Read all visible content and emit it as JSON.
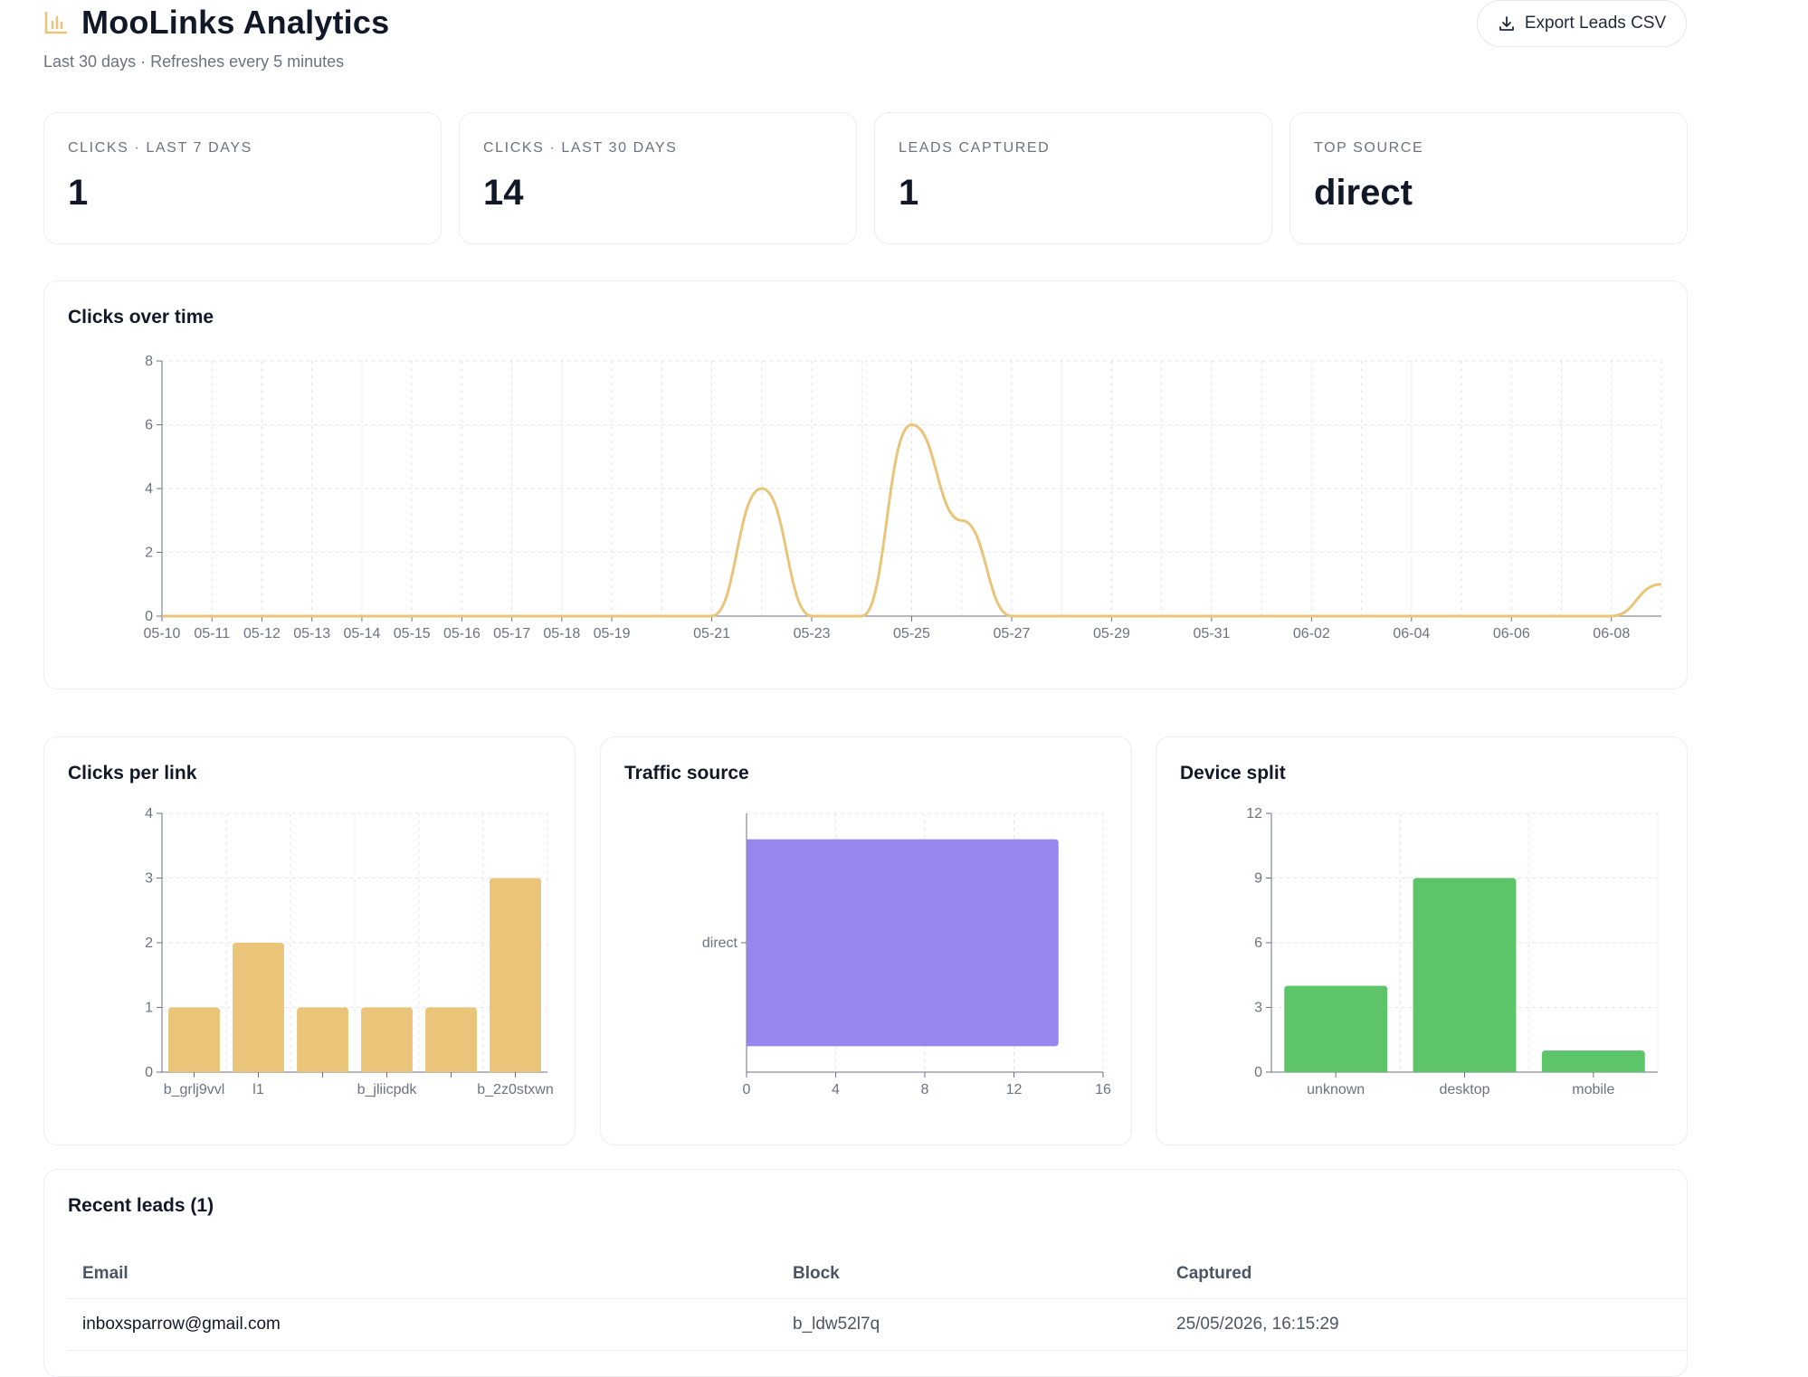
{
  "header": {
    "title": "MooLinks Analytics",
    "subtitle": "Last 30 days · Refreshes every 5 minutes",
    "export_label": "Export Leads CSV"
  },
  "stats": [
    {
      "label": "CLICKS · LAST 7 DAYS",
      "value": "1"
    },
    {
      "label": "CLICKS · LAST 30 DAYS",
      "value": "14"
    },
    {
      "label": "LEADS CAPTURED",
      "value": "1"
    },
    {
      "label": "TOP SOURCE",
      "value": "direct"
    }
  ],
  "colors": {
    "accent": "#e9c479",
    "traffic": "#9786ed",
    "device": "#5ec46a",
    "axis": "#6b7280",
    "grid": "#e5e7eb"
  },
  "charts": {
    "clicks_over_time": {
      "title": "Clicks over time",
      "chart_data": {
        "type": "line",
        "x": [
          "05-10",
          "05-11",
          "05-12",
          "05-13",
          "05-14",
          "05-15",
          "05-16",
          "05-17",
          "05-18",
          "05-19",
          "05-20",
          "05-21",
          "05-22",
          "05-23",
          "05-24",
          "05-25",
          "05-26",
          "05-27",
          "05-28",
          "05-29",
          "05-30",
          "05-31",
          "06-01",
          "06-02",
          "06-03",
          "06-04",
          "06-05",
          "06-06",
          "06-07",
          "06-08",
          "06-09"
        ],
        "y": [
          0,
          0,
          0,
          0,
          0,
          0,
          0,
          0,
          0,
          0,
          0,
          0,
          4,
          0,
          0,
          6,
          3,
          0,
          0,
          0,
          0,
          0,
          0,
          0,
          0,
          0,
          0,
          0,
          0,
          0,
          1
        ],
        "x_tick_labels": [
          "05-10",
          "05-11",
          "05-12",
          "05-13",
          "05-14",
          "05-15",
          "05-16",
          "05-17",
          "05-18",
          "05-19",
          "05-21",
          "05-23",
          "05-25",
          "05-27",
          "05-29",
          "05-31",
          "06-02",
          "06-04",
          "06-06",
          "06-08"
        ],
        "ylim": [
          0,
          8
        ],
        "y_ticks": [
          0,
          2,
          4,
          6,
          8
        ],
        "grid": true
      }
    },
    "clicks_per_link": {
      "title": "Clicks per link",
      "chart_data": {
        "type": "bar",
        "categories": [
          "b_grlj9vvl",
          "l1",
          "",
          "b_jliicpdk",
          "",
          "b_2z0stxwn"
        ],
        "values": [
          1,
          2,
          1,
          1,
          1,
          3
        ],
        "ylim": [
          0,
          4
        ],
        "y_ticks": [
          0,
          1,
          2,
          3,
          4
        ],
        "grid": true
      }
    },
    "traffic_source": {
      "title": "Traffic source",
      "chart_data": {
        "type": "bar",
        "orientation": "horizontal",
        "categories": [
          "direct"
        ],
        "values": [
          14
        ],
        "xlim": [
          0,
          16
        ],
        "x_ticks": [
          0,
          4,
          8,
          12,
          16
        ],
        "grid": true
      }
    },
    "device_split": {
      "title": "Device split",
      "chart_data": {
        "type": "bar",
        "categories": [
          "unknown",
          "desktop",
          "mobile"
        ],
        "values": [
          4,
          9,
          1
        ],
        "ylim": [
          0,
          12
        ],
        "y_ticks": [
          0,
          3,
          6,
          9,
          12
        ],
        "grid": true
      }
    }
  },
  "leads": {
    "title": "Recent leads (1)",
    "columns": [
      "Email",
      "Block",
      "Captured"
    ],
    "rows": [
      {
        "email": "inboxsparrow@gmail.com",
        "block": "b_ldw52l7q",
        "captured": "25/05/2026, 16:15:29"
      }
    ]
  }
}
